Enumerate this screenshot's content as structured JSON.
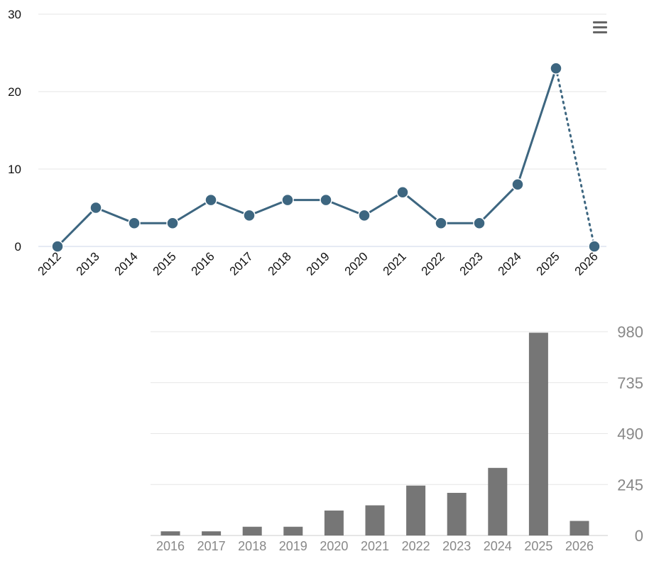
{
  "chart_data": [
    {
      "type": "line",
      "x": [
        "2012",
        "2013",
        "2014",
        "2015",
        "2016",
        "2017",
        "2018",
        "2019",
        "2020",
        "2021",
        "2022",
        "2023",
        "2024",
        "2025",
        "2026"
      ],
      "series": [
        {
          "values": [
            0,
            5,
            3,
            3,
            6,
            4,
            6,
            6,
            4,
            7,
            3,
            3,
            8,
            23,
            0
          ]
        }
      ],
      "ylim": [
        0,
        30
      ],
      "yticks": [
        "0",
        "10",
        "20",
        "30"
      ],
      "dotted_last_segment": true,
      "grid": true,
      "color": "#3d6680"
    },
    {
      "type": "bar",
      "categories": [
        "2016",
        "2017",
        "2018",
        "2019",
        "2020",
        "2021",
        "2022",
        "2023",
        "2024",
        "2025",
        "2026"
      ],
      "values": [
        20,
        20,
        42,
        42,
        120,
        145,
        240,
        205,
        325,
        975,
        70
      ],
      "ylim": [
        0,
        980
      ],
      "yticks": [
        "0",
        "245",
        "490",
        "735",
        "980"
      ],
      "y_axis_side": "right",
      "grid": true,
      "color": "#767676"
    }
  ],
  "menu": {
    "icon": "hamburger-menu-icon"
  }
}
